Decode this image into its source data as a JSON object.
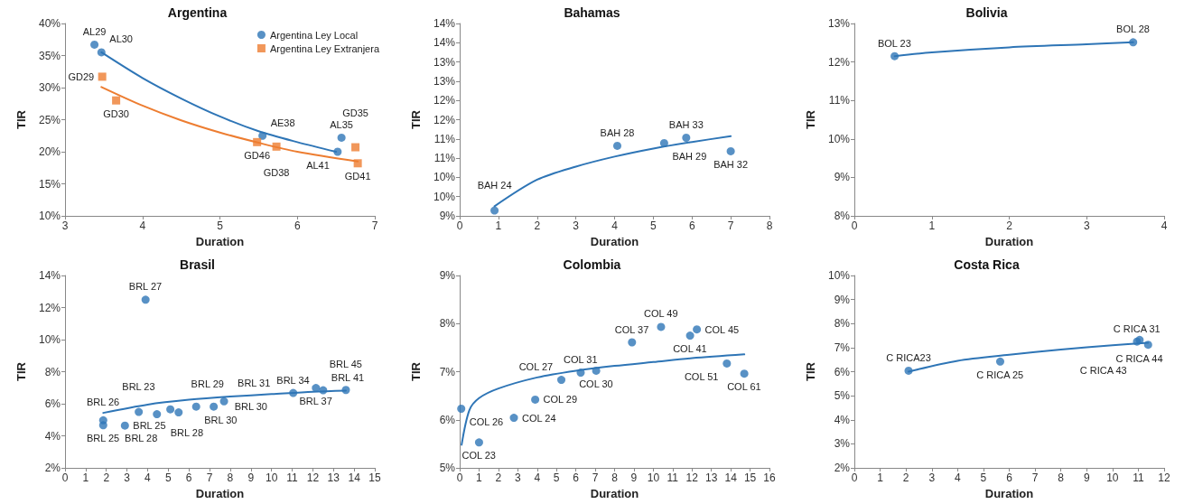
{
  "chart_data": [
    {
      "type": "scatter",
      "title": "Argentina",
      "xlabel": "Duration",
      "ylabel": "TIR",
      "xlim": [
        3,
        7
      ],
      "xticks": [
        3,
        4,
        5,
        6,
        7
      ],
      "ylim": [
        10,
        40
      ],
      "yticks": [
        {
          "value": 10,
          "label": "10%"
        },
        {
          "value": 15,
          "label": "15%"
        },
        {
          "value": 20,
          "label": "20%"
        },
        {
          "value": 25,
          "label": "25%"
        },
        {
          "value": 30,
          "label": "30%"
        },
        {
          "value": 35,
          "label": "35%"
        },
        {
          "value": 40,
          "label": "40%"
        }
      ],
      "grid": false,
      "legend": "top right",
      "series": [
        {
          "name": "Argentina Ley Local",
          "color": "#2e75b6",
          "marker": "circle",
          "x": [
            3.38,
            3.47,
            5.55,
            6.57,
            6.52
          ],
          "values": [
            36.7,
            35.5,
            22.5,
            22.2,
            20.0
          ]
        },
        {
          "name": "Argentina Ley Extranjera",
          "color": "#ed7d31",
          "marker": "square",
          "x": [
            3.48,
            3.66,
            5.48,
            5.73,
            6.75,
            6.78
          ],
          "values": [
            31.7,
            28.0,
            21.5,
            20.8,
            20.7,
            18.2
          ]
        },
        {
          "type": "line",
          "color": "#2e75b6",
          "x": [
            3.47,
            4,
            4.5,
            5,
            5.5,
            6,
            6.5
          ],
          "values": [
            35.5,
            31.5,
            28.3,
            25.5,
            23.2,
            21.5,
            20.0
          ]
        },
        {
          "type": "line",
          "color": "#ed7d31",
          "x": [
            3.47,
            4,
            4.5,
            5,
            5.5,
            6,
            6.78
          ],
          "values": [
            30.1,
            27.2,
            24.9,
            23.0,
            21.4,
            20.0,
            18.5
          ]
        }
      ],
      "annotations": [
        {
          "text": "AL29",
          "x": 3.38,
          "y": 36.7
        },
        {
          "text": "AL30",
          "x": 3.47,
          "y": 35.5
        },
        {
          "text": "AE38",
          "x": 5.55,
          "y": 22.5
        },
        {
          "text": "AL35",
          "x": 6.57,
          "y": 22.2
        },
        {
          "text": "AL41",
          "x": 6.52,
          "y": 20.0
        },
        {
          "text": "GD29",
          "x": 3.48,
          "y": 31.7
        },
        {
          "text": "GD30",
          "x": 3.66,
          "y": 28.0
        },
        {
          "text": "GD46",
          "x": 5.48,
          "y": 21.5
        },
        {
          "text": "GD38",
          "x": 5.73,
          "y": 20.8
        },
        {
          "text": "GD35",
          "x": 6.75,
          "y": 20.7
        },
        {
          "text": "GD41",
          "x": 6.78,
          "y": 18.2
        }
      ]
    },
    {
      "type": "scatter",
      "title": "Bahamas",
      "xlabel": "Duration",
      "ylabel": "TIR",
      "xlim": [
        0,
        8
      ],
      "xticks": [
        0,
        1,
        2,
        3,
        4,
        5,
        6,
        7,
        8
      ],
      "ylim": [
        9,
        14
      ],
      "yticks": [
        {
          "value": 9,
          "label": "9%"
        },
        {
          "value": 9.5,
          "label": "10%"
        },
        {
          "value": 10,
          "label": "10%"
        },
        {
          "value": 10.5,
          "label": "11%"
        },
        {
          "value": 11,
          "label": "11%"
        },
        {
          "value": 11.5,
          "label": "12%"
        },
        {
          "value": 12,
          "label": "12%"
        },
        {
          "value": 12.5,
          "label": "13%"
        },
        {
          "value": 13,
          "label": "13%"
        },
        {
          "value": 13.5,
          "label": "14%"
        },
        {
          "value": 14,
          "label": "14%"
        }
      ],
      "grid": false,
      "series": [
        {
          "color": "#2e75b6",
          "marker": "circle",
          "x": [
            0.9,
            4.07,
            5.28,
            5.85,
            7.0
          ],
          "values": [
            9.14,
            10.82,
            10.89,
            11.03,
            10.68
          ]
        },
        {
          "type": "line",
          "color": "#2e75b6",
          "x": [
            0.9,
            2,
            3,
            4,
            5,
            6,
            7
          ],
          "values": [
            9.25,
            9.94,
            10.28,
            10.54,
            10.75,
            10.92,
            11.07
          ]
        }
      ],
      "annotations": [
        {
          "text": "BAH 24",
          "x": 0.9,
          "y": 9.14
        },
        {
          "text": "BAH 28",
          "x": 4.07,
          "y": 10.82
        },
        {
          "text": "BAH 29",
          "x": 5.28,
          "y": 10.89
        },
        {
          "text": "BAH 33",
          "x": 5.85,
          "y": 11.03
        },
        {
          "text": "BAH 32",
          "x": 7.0,
          "y": 10.68
        }
      ]
    },
    {
      "type": "scatter",
      "title": "Bolivia",
      "xlabel": "Duration",
      "ylabel": "TIR",
      "xlim": [
        0,
        4
      ],
      "xticks": [
        0,
        1,
        2,
        3,
        4
      ],
      "ylim": [
        8,
        13
      ],
      "yticks": [
        {
          "value": 8,
          "label": "8%"
        },
        {
          "value": 9,
          "label": "9%"
        },
        {
          "value": 10,
          "label": "10%"
        },
        {
          "value": 11,
          "label": "11%"
        },
        {
          "value": 12,
          "label": "12%"
        },
        {
          "value": 13,
          "label": "13%"
        }
      ],
      "grid": false,
      "series": [
        {
          "color": "#2e75b6",
          "marker": "circle",
          "x": [
            0.52,
            3.6
          ],
          "values": [
            12.15,
            12.51
          ]
        },
        {
          "type": "line",
          "color": "#2e75b6",
          "x": [
            0.52,
            1,
            2,
            3,
            3.6
          ],
          "values": [
            12.15,
            12.25,
            12.38,
            12.46,
            12.51
          ]
        }
      ],
      "annotations": [
        {
          "text": "BOL 23",
          "x": 0.52,
          "y": 12.15
        },
        {
          "text": "BOL 28",
          "x": 3.6,
          "y": 12.51
        }
      ]
    },
    {
      "type": "scatter",
      "title": "Brasil",
      "xlabel": "Duration",
      "ylabel": "TIR",
      "xlim": [
        0,
        15
      ],
      "xticks": [
        0,
        1,
        2,
        3,
        4,
        5,
        6,
        7,
        8,
        9,
        10,
        11,
        12,
        13,
        14,
        15
      ],
      "ylim": [
        2,
        14
      ],
      "yticks": [
        {
          "value": 2,
          "label": "2%"
        },
        {
          "value": 4,
          "label": "4%"
        },
        {
          "value": 6,
          "label": "6%"
        },
        {
          "value": 8,
          "label": "8%"
        },
        {
          "value": 10,
          "label": "10%"
        },
        {
          "value": 12,
          "label": "12%"
        },
        {
          "value": 14,
          "label": "14%"
        }
      ],
      "grid": false,
      "series": [
        {
          "color": "#2e75b6",
          "marker": "circle",
          "x": [
            1.85,
            1.85,
            2.9,
            3.57,
            3.9,
            4.45,
            5.1,
            5.5,
            6.35,
            7.2,
            7.7,
            11.05,
            12.15,
            12.5,
            13.6
          ],
          "values": [
            4.97,
            4.66,
            4.64,
            5.49,
            12.49,
            5.35,
            5.65,
            5.46,
            5.82,
            5.82,
            6.15,
            6.67,
            6.98,
            6.84,
            6.86
          ]
        },
        {
          "type": "line",
          "color": "#2e75b6",
          "x": [
            1.85,
            4,
            6,
            8,
            10,
            12,
            13.6
          ],
          "values": [
            5.43,
            5.95,
            6.25,
            6.45,
            6.6,
            6.75,
            6.82
          ]
        }
      ],
      "annotations": [
        {
          "text": "BRL 26",
          "x": 1.85,
          "y": 4.97
        },
        {
          "text": "BRL 25",
          "x": 1.85,
          "y": 4.66
        },
        {
          "text": "BRL 25",
          "x": 2.9,
          "y": 4.64
        },
        {
          "text": "BRL 23",
          "x": 3.57,
          "y": 5.49
        },
        {
          "text": "BRL 27",
          "x": 3.9,
          "y": 12.49
        },
        {
          "text": "BRL 28",
          "x": 4.45,
          "y": 5.35
        },
        {
          "text": "BRL 29",
          "x": 5.1,
          "y": 5.65
        },
        {
          "text": "BRL 28",
          "x": 5.5,
          "y": 5.46
        },
        {
          "text": "BRL 30",
          "x": 6.35,
          "y": 5.82
        },
        {
          "text": "BRL 30",
          "x": 7.2,
          "y": 5.82
        },
        {
          "text": "BRL 31",
          "x": 7.7,
          "y": 6.15
        },
        {
          "text": "BRL 34",
          "x": 11.05,
          "y": 6.67
        },
        {
          "text": "BRL 37",
          "x": 12.15,
          "y": 6.98
        },
        {
          "text": "BRL 41",
          "x": 12.5,
          "y": 6.84
        },
        {
          "text": "BRL 45",
          "x": 13.6,
          "y": 6.86
        }
      ]
    },
    {
      "type": "scatter",
      "title": "Colombia",
      "xlabel": "Duration",
      "ylabel": "TIR",
      "xlim": [
        0,
        16
      ],
      "xticks": [
        0,
        1,
        2,
        3,
        4,
        5,
        6,
        7,
        8,
        9,
        10,
        11,
        12,
        13,
        14,
        15,
        16
      ],
      "ylim": [
        5,
        9
      ],
      "yticks": [
        {
          "value": 5,
          "label": "5%"
        },
        {
          "value": 6,
          "label": "6%"
        },
        {
          "value": 7,
          "label": "7%"
        },
        {
          "value": 8,
          "label": "8%"
        },
        {
          "value": 9,
          "label": "9%"
        }
      ],
      "grid": false,
      "series": [
        {
          "color": "#2e75b6",
          "marker": "circle",
          "x": [
            0.08,
            1.0,
            2.8,
            3.9,
            5.25,
            6.25,
            7.05,
            8.9,
            10.4,
            11.9,
            12.25,
            13.8,
            14.7
          ],
          "values": [
            6.23,
            5.53,
            6.04,
            6.42,
            6.83,
            6.98,
            7.02,
            7.61,
            7.93,
            7.75,
            7.88,
            7.17,
            6.96
          ]
        },
        {
          "type": "line",
          "color": "#2e75b6",
          "x": [
            0.1,
            0.5,
            1,
            2,
            4,
            6,
            8,
            10,
            12,
            14.7
          ],
          "values": [
            5.48,
            6.2,
            6.45,
            6.65,
            6.88,
            7.02,
            7.12,
            7.2,
            7.28,
            7.36
          ]
        }
      ],
      "annotations": [
        {
          "text": "COL 26",
          "x": 0.08,
          "y": 6.23
        },
        {
          "text": "COL 23",
          "x": 1.0,
          "y": 5.53
        },
        {
          "text": "COL 24",
          "x": 2.8,
          "y": 6.04
        },
        {
          "text": "COL 29",
          "x": 3.9,
          "y": 6.42
        },
        {
          "text": "COL 27",
          "x": 5.25,
          "y": 6.83
        },
        {
          "text": "COL 31",
          "x": 6.25,
          "y": 6.98
        },
        {
          "text": "COL 30",
          "x": 7.05,
          "y": 7.02
        },
        {
          "text": "COL 37",
          "x": 8.9,
          "y": 7.61
        },
        {
          "text": "COL 49",
          "x": 10.4,
          "y": 7.93
        },
        {
          "text": "COL 41",
          "x": 11.9,
          "y": 7.75
        },
        {
          "text": "COL 45",
          "x": 12.25,
          "y": 7.88
        },
        {
          "text": "COL 51",
          "x": 13.8,
          "y": 7.17
        },
        {
          "text": "COL 61",
          "x": 14.7,
          "y": 6.96
        }
      ]
    },
    {
      "type": "scatter",
      "title": "Costa Rica",
      "xlabel": "Duration",
      "ylabel": "TIR",
      "xlim": [
        0,
        12
      ],
      "xticks": [
        0,
        1,
        2,
        3,
        4,
        5,
        6,
        7,
        8,
        9,
        10,
        11,
        12
      ],
      "ylim": [
        2,
        10
      ],
      "yticks": [
        {
          "value": 2,
          "label": "2%"
        },
        {
          "value": 3,
          "label": "3%"
        },
        {
          "value": 4,
          "label": "4%"
        },
        {
          "value": 5,
          "label": "5%"
        },
        {
          "value": 6,
          "label": "6%"
        },
        {
          "value": 7,
          "label": "7%"
        },
        {
          "value": 8,
          "label": "8%"
        },
        {
          "value": 9,
          "label": "9%"
        },
        {
          "value": 10,
          "label": "10%"
        }
      ],
      "grid": false,
      "series": [
        {
          "color": "#2e75b6",
          "marker": "circle",
          "x": [
            2.1,
            5.65,
            10.95,
            11.05,
            11.38
          ],
          "values": [
            6.04,
            6.42,
            7.25,
            7.32,
            7.12
          ]
        },
        {
          "type": "line",
          "color": "#2e75b6",
          "x": [
            2.1,
            4,
            6,
            8,
            10,
            11.38
          ],
          "values": [
            6.0,
            6.45,
            6.7,
            6.92,
            7.1,
            7.2
          ]
        }
      ],
      "annotations": [
        {
          "text": "C RICA23",
          "x": 2.1,
          "y": 6.04
        },
        {
          "text": "C RICA 25",
          "x": 5.65,
          "y": 6.42
        },
        {
          "text": "C RICA 31",
          "x": 10.95,
          "y": 7.25
        },
        {
          "text": "C RICA 44",
          "x": 11.05,
          "y": 7.32
        },
        {
          "text": "C RICA 43",
          "x": 11.38,
          "y": 7.12
        }
      ]
    }
  ]
}
